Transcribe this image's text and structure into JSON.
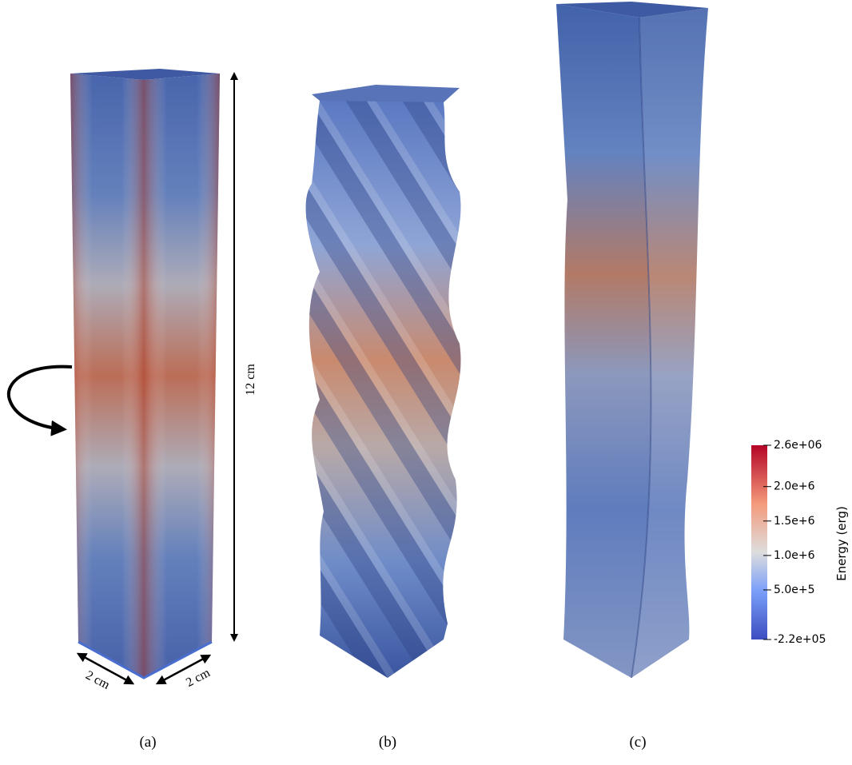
{
  "panels": [
    {
      "label": "(a)",
      "width_labels": [
        "2 cm",
        "2 cm"
      ],
      "height_label": "12 cm"
    },
    {
      "label": "(b)"
    },
    {
      "label": "(c)"
    }
  ],
  "colorbar": {
    "title": "Energy (erg)",
    "range": [
      -220000,
      2600000
    ],
    "ticks": [
      {
        "value": 2600000,
        "label": "2.6e+06"
      },
      {
        "value": 2000000,
        "label": "2.0e+6"
      },
      {
        "value": 1500000,
        "label": "1.5e+6"
      },
      {
        "value": 1000000,
        "label": "1.0e+6"
      },
      {
        "value": 500000,
        "label": "5.0e+5"
      },
      {
        "value": -220000,
        "label": "-2.2e+05"
      }
    ]
  }
}
